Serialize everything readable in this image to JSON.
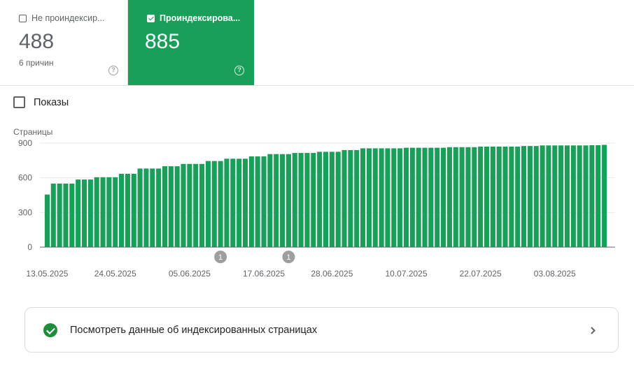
{
  "tabs": {
    "unindexed": {
      "label": "Не проиндексир...",
      "value": "488",
      "sub": "6 причин",
      "selected": false
    },
    "indexed": {
      "label": "Проиндексирова...",
      "value": "885",
      "selected": true
    }
  },
  "impressions_toggle": {
    "label": "Показы",
    "checked": false
  },
  "help_glyph": "?",
  "colors": {
    "accent_green": "#1a9f5a",
    "bar_green": "#1a9f5a",
    "marker_gray": "#9e9e9e"
  },
  "chart_data": {
    "type": "bar",
    "ylabel": "Страницы",
    "ylim": [
      0,
      900
    ],
    "yticks": [
      0,
      300,
      600,
      900
    ],
    "grid": true,
    "xtick_labels": [
      "13.05.2025",
      "24.05.2025",
      "05.06.2025",
      "17.06.2025",
      "28.06.2025",
      "10.07.2025",
      "22.07.2025",
      "03.08.2025"
    ],
    "xtick_indices": [
      0,
      11,
      23,
      35,
      46,
      58,
      70,
      82
    ],
    "values": [
      455,
      550,
      550,
      550,
      550,
      585,
      585,
      585,
      605,
      605,
      605,
      605,
      635,
      635,
      635,
      680,
      680,
      680,
      680,
      700,
      700,
      700,
      720,
      720,
      720,
      720,
      745,
      745,
      745,
      765,
      765,
      765,
      765,
      785,
      785,
      785,
      805,
      805,
      805,
      805,
      815,
      815,
      815,
      815,
      825,
      825,
      825,
      825,
      840,
      840,
      840,
      855,
      855,
      855,
      855,
      855,
      855,
      855,
      860,
      860,
      860,
      860,
      860,
      860,
      860,
      865,
      865,
      865,
      865,
      865,
      870,
      870,
      870,
      870,
      870,
      870,
      870,
      875,
      875,
      875,
      880,
      880,
      880,
      880,
      880,
      880,
      880,
      880,
      882,
      882,
      885
    ],
    "annotations": [
      {
        "label": "1",
        "index": 28
      },
      {
        "label": "1",
        "index": 39
      }
    ]
  },
  "action_link": {
    "label": "Посмотреть данные об индексированных страницах"
  }
}
